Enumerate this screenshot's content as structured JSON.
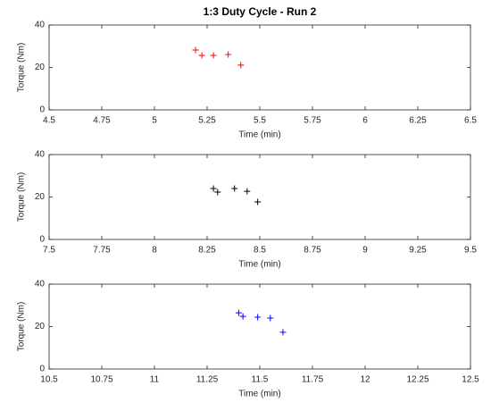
{
  "chart_data": [
    {
      "type": "scatter",
      "title": "1:3 Duty Cycle - Run 2",
      "xlabel": "Time (min)",
      "ylabel": "Torque (Nm)",
      "color": "#ff0000",
      "x": [
        5.195,
        5.225,
        5.28,
        5.35,
        5.41
      ],
      "values": [
        28.2,
        25.7,
        25.7,
        26.1,
        21.1
      ],
      "xlim": [
        4.5,
        6.5
      ],
      "xticks": [
        4.5,
        4.75,
        5,
        5.25,
        5.5,
        5.75,
        6,
        6.25,
        6.5
      ],
      "ylim": [
        0,
        40
      ],
      "yticks": [
        0,
        20,
        40
      ],
      "grid": false
    },
    {
      "type": "scatter",
      "xlabel": "Time (min)",
      "ylabel": "Torque (Nm)",
      "color": "#000000",
      "x": [
        8.28,
        8.3,
        8.38,
        8.44,
        8.49
      ],
      "values": [
        24.0,
        22.3,
        24.0,
        22.7,
        17.7
      ],
      "xlim": [
        7.5,
        9.5
      ],
      "xticks": [
        7.5,
        7.75,
        8,
        8.25,
        8.5,
        8.75,
        9,
        9.25,
        9.5
      ],
      "ylim": [
        0,
        40
      ],
      "yticks": [
        0,
        20,
        40
      ],
      "grid": false
    },
    {
      "type": "scatter",
      "xlabel": "Time (min)",
      "ylabel": "Torque (Nm)",
      "color": "#0000ff",
      "x": [
        11.4,
        11.42,
        11.49,
        11.55,
        11.61
      ],
      "values": [
        26.5,
        24.8,
        24.4,
        24.0,
        17.3
      ],
      "xlim": [
        10.5,
        12.5
      ],
      "xticks": [
        10.5,
        10.75,
        11,
        11.25,
        11.5,
        11.75,
        12,
        12.25,
        12.5
      ],
      "ylim": [
        0,
        40
      ],
      "yticks": [
        0,
        20,
        40
      ],
      "grid": false
    }
  ]
}
